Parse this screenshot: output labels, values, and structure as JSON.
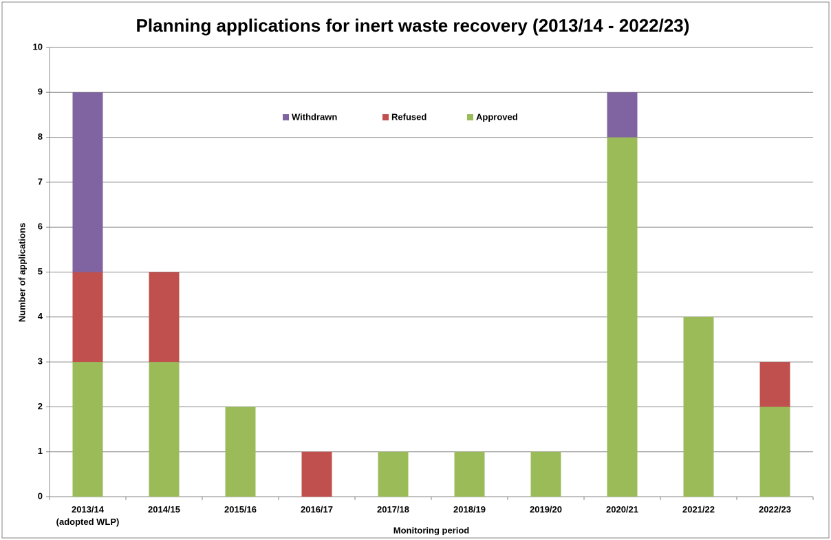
{
  "chart_data": {
    "type": "stacked_bar",
    "title": "Planning applications for inert waste recovery (2013/14 - 2022/23)",
    "x_label": "Monitoring period",
    "y_label": "Number of applications",
    "categories": [
      "2013/14\n(adopted WLP)",
      "2014/15",
      "2015/16",
      "2016/17",
      "2017/18",
      "2018/19",
      "2019/20",
      "2020/21",
      "2021/22",
      "2022/23"
    ],
    "series": [
      {
        "name": "Approved",
        "color": "#9bbb59",
        "values": [
          3,
          3,
          2,
          0,
          1,
          1,
          1,
          8,
          4,
          2
        ]
      },
      {
        "name": "Refused",
        "color": "#c0504d",
        "values": [
          2,
          2,
          0,
          1,
          0,
          0,
          0,
          0,
          0,
          1
        ]
      },
      {
        "name": "Withdrawn",
        "color": "#8064a2",
        "values": [
          4,
          0,
          0,
          0,
          0,
          0,
          0,
          1,
          0,
          0
        ]
      }
    ],
    "ylim": [
      0,
      10
    ],
    "yticks": [
      0,
      1,
      2,
      3,
      4,
      5,
      6,
      7,
      8,
      9,
      10
    ],
    "grid": true,
    "legend": "top"
  }
}
